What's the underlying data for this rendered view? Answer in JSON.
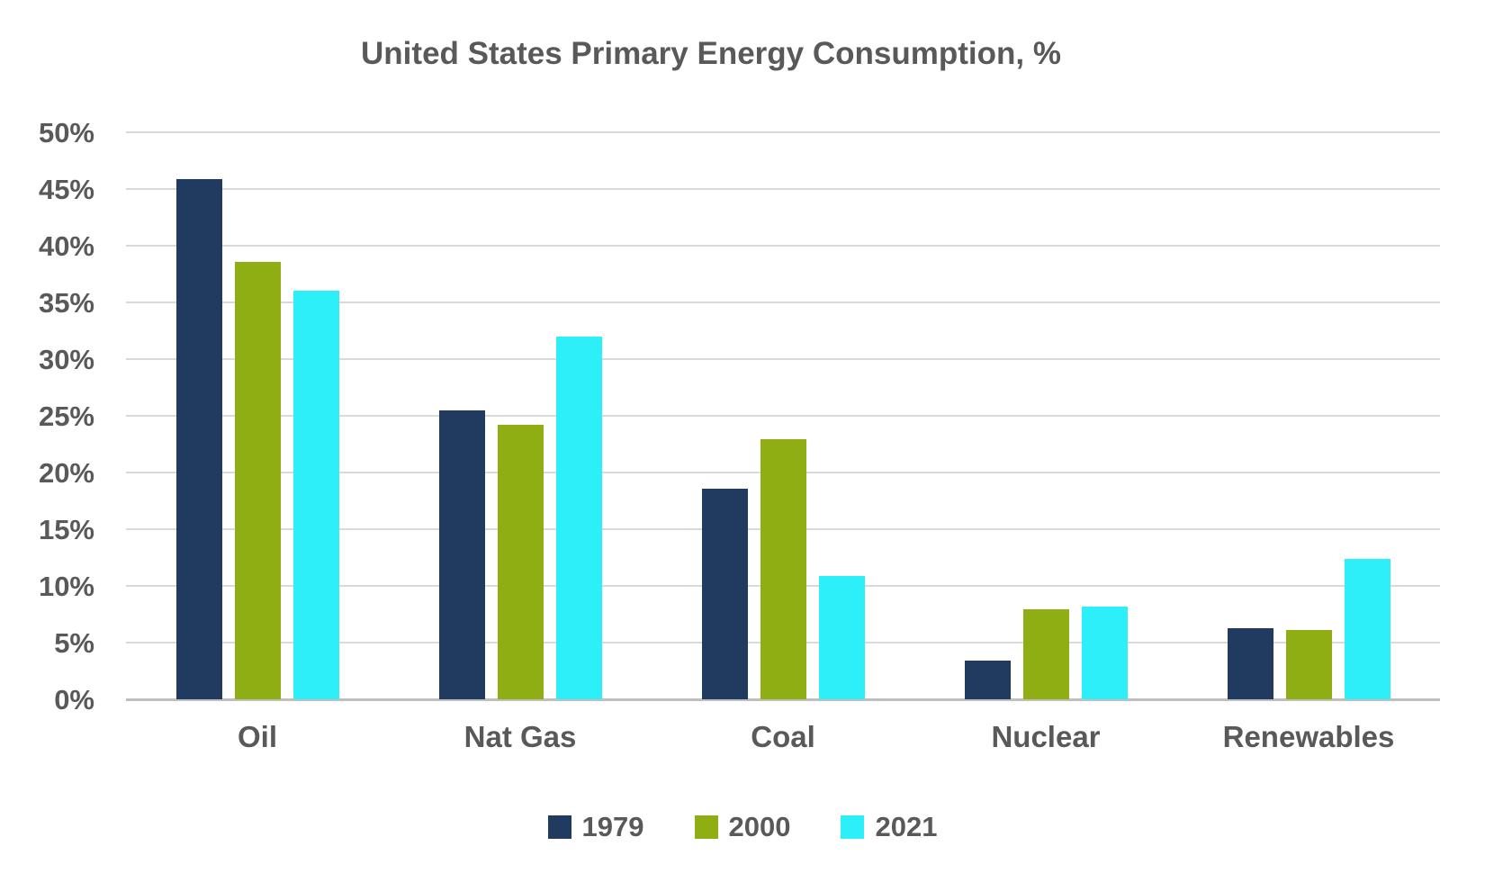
{
  "chart_data": {
    "type": "bar",
    "title": "United States Primary Energy Consumption, %",
    "categories": [
      "Oil",
      "Nat Gas",
      "Coal",
      "Nuclear",
      "Renewables"
    ],
    "series": [
      {
        "name": "1979",
        "color": "#203A60",
        "values": [
          45.9,
          25.5,
          18.6,
          3.4,
          6.3
        ]
      },
      {
        "name": "2000",
        "color": "#8FAE13",
        "values": [
          38.6,
          24.2,
          22.9,
          7.9,
          6.1
        ]
      },
      {
        "name": "2021",
        "color": "#2DEFFA",
        "values": [
          36.0,
          32.0,
          10.9,
          8.2,
          12.4
        ]
      }
    ],
    "xlabel": "",
    "ylabel": "",
    "ylim": [
      0,
      50
    ],
    "ytick_step": 5,
    "ytick_labels": [
      "0%",
      "5%",
      "10%",
      "15%",
      "20%",
      "25%",
      "30%",
      "35%",
      "40%",
      "45%",
      "50%"
    ],
    "grid": true,
    "legend_position": "bottom",
    "colors": {
      "text": "#595959",
      "gridline": "#D9D9D9",
      "axis_line": "#BFBFBF",
      "background": "#FFFFFF"
    }
  }
}
